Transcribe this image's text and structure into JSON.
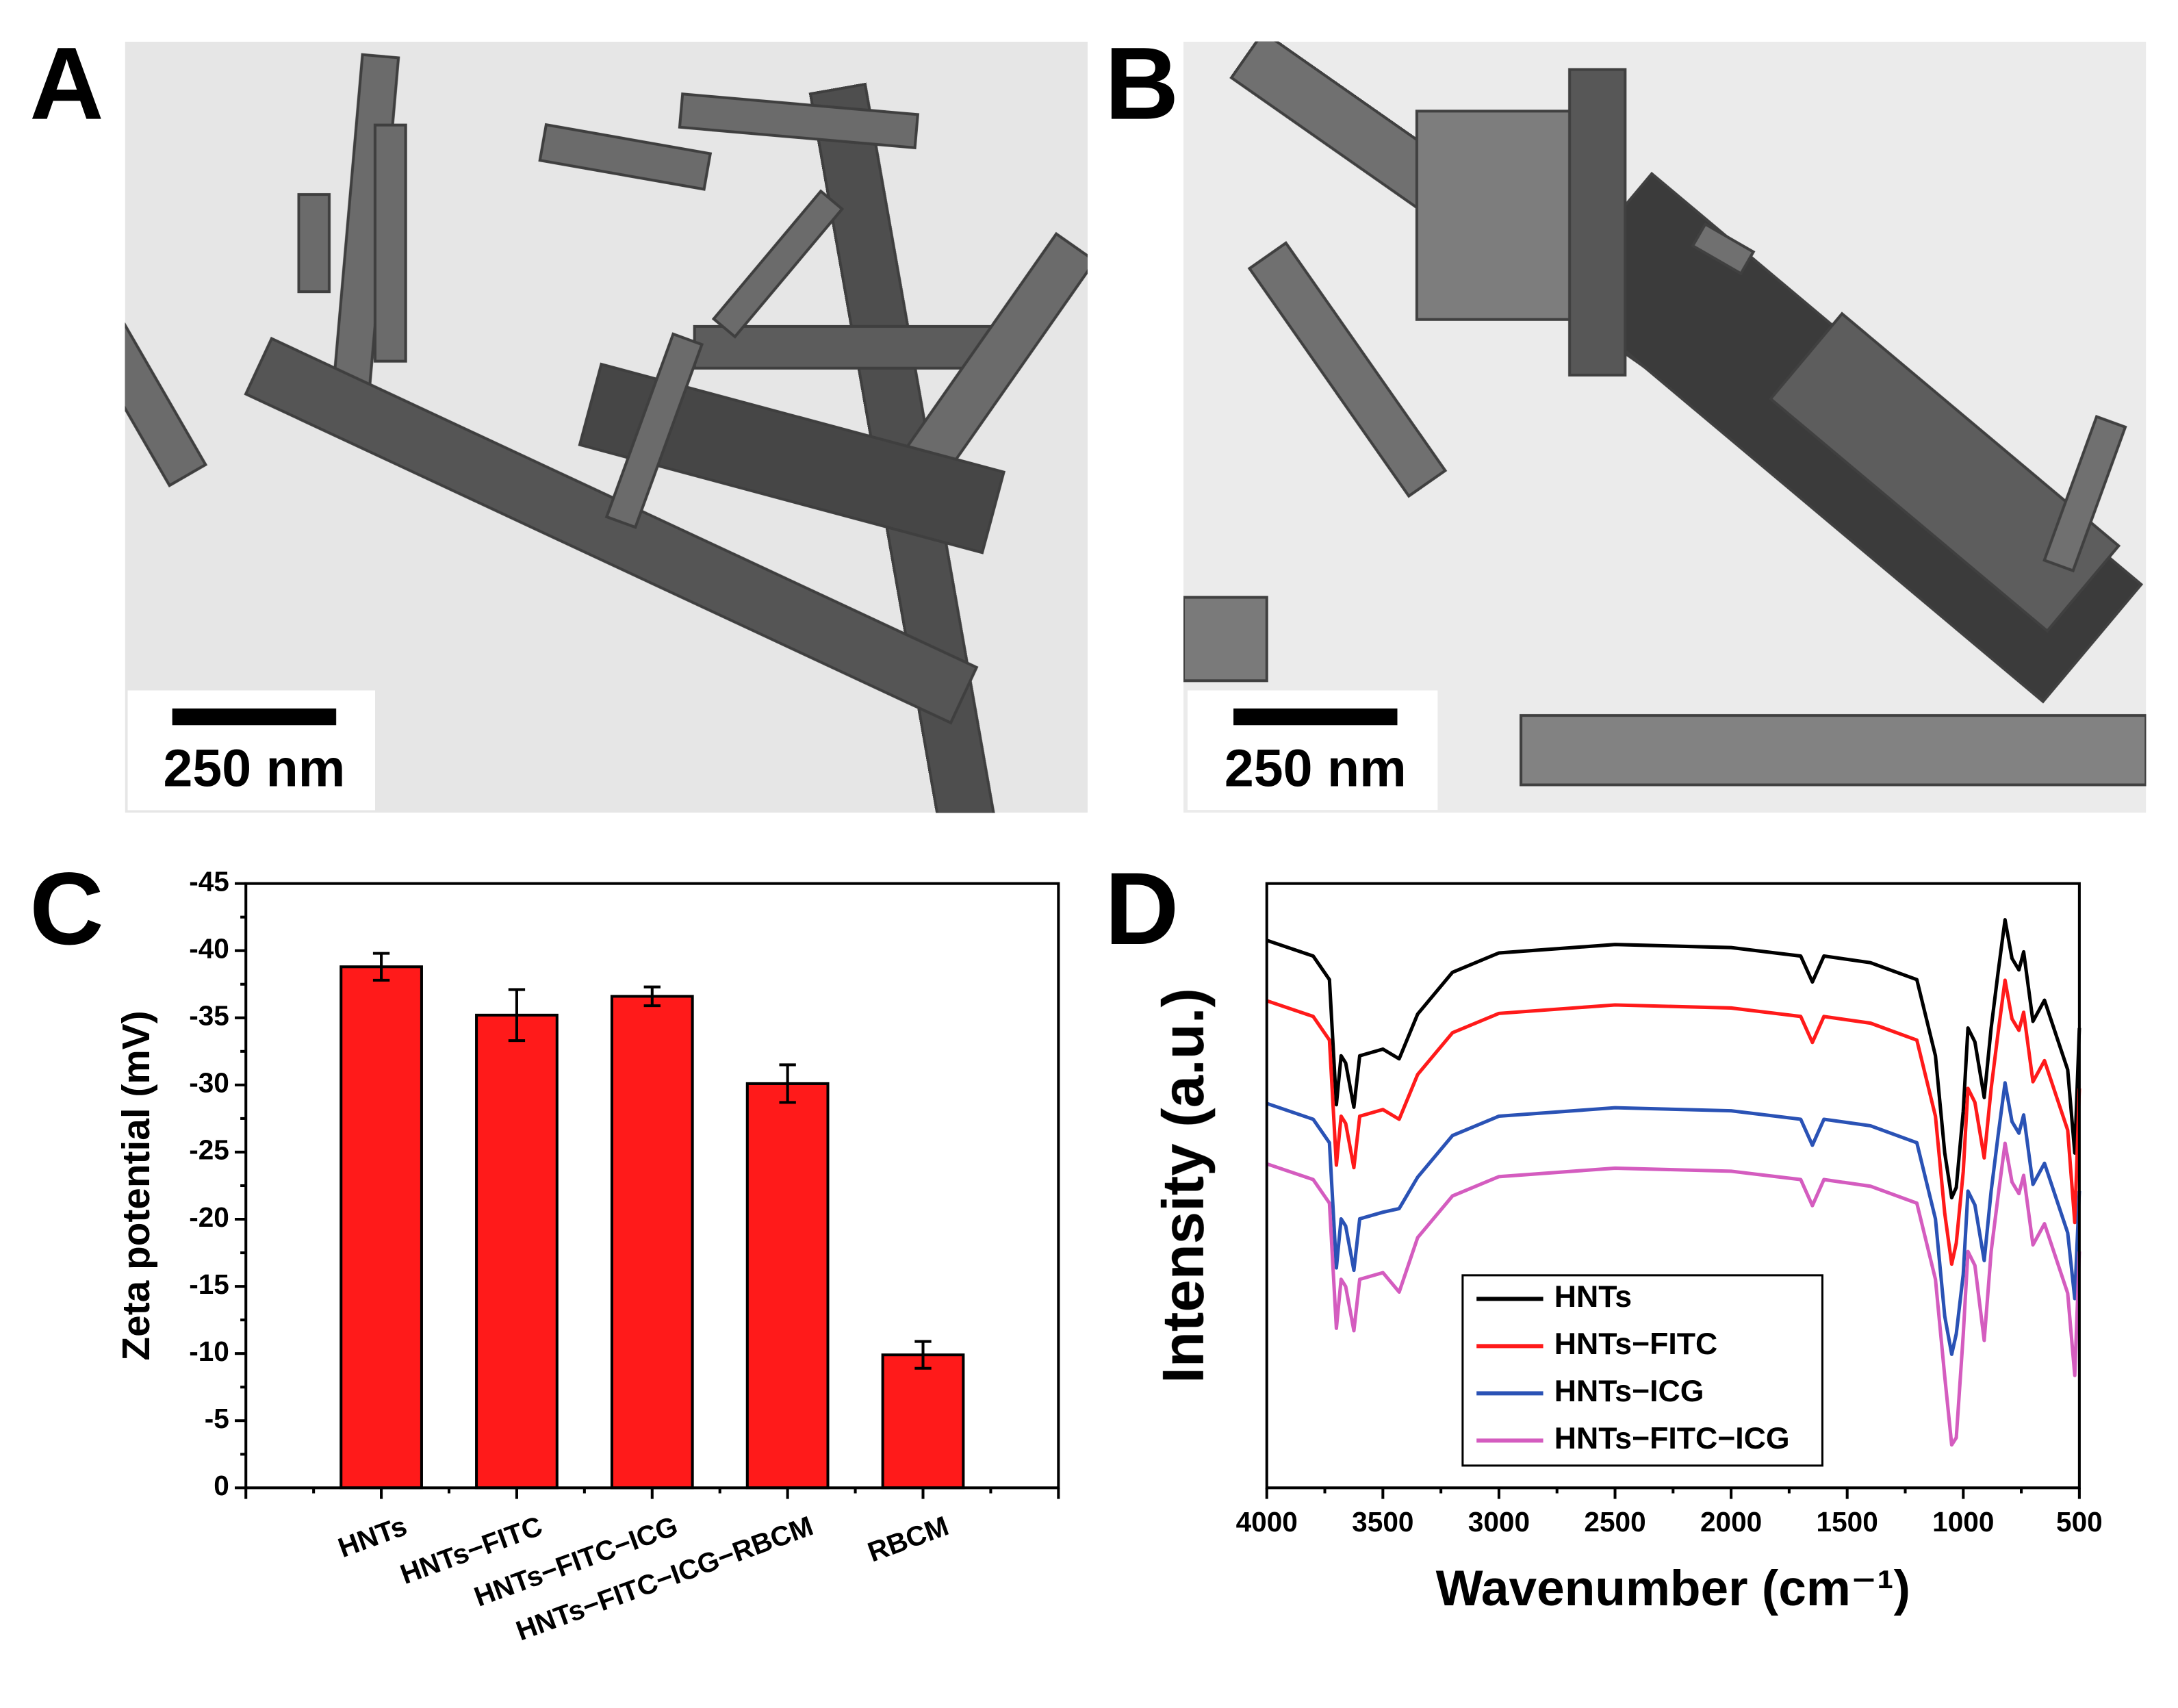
{
  "images": [
    {
      "panel_label": "A",
      "scale_bar": "250 nm"
    },
    {
      "panel_label": "B",
      "scale_bar": "250 nm"
    }
  ],
  "chart_data": [
    {
      "type": "bar",
      "panel_label": "C",
      "y_label": "Zeta potential (mV)",
      "categories": [
        "HNTs",
        "HNTs−FITC",
        "HNTs−FITC−ICG",
        "HNTs−FITC−ICG−RBCM",
        "RBCM"
      ],
      "values": [
        -38.8,
        -35.2,
        -36.6,
        -30.1,
        -9.9
      ],
      "errors": [
        1.0,
        1.9,
        0.7,
        1.4,
        1.0
      ],
      "color": "#ff1a1a",
      "ylim": [
        0,
        -45
      ],
      "yticks": [
        0,
        -5,
        -10,
        -15,
        -20,
        -25,
        -30,
        -35,
        -40,
        -45
      ]
    },
    {
      "type": "line",
      "panel_label": "D",
      "x_label": "Wavenumber (cm⁻¹)",
      "y_label": "Intensity (a.u.)",
      "x": [
        4000,
        3800,
        3730,
        3700,
        3680,
        3660,
        3625,
        3600,
        3500,
        3430,
        3350,
        3200,
        3000,
        2500,
        2000,
        1700,
        1650,
        1600,
        1400,
        1200,
        1120,
        1080,
        1050,
        1030,
        1000,
        980,
        950,
        910,
        880,
        850,
        820,
        790,
        760,
        740,
        700,
        650,
        600,
        550,
        520,
        500
      ],
      "series": [
        {
          "name": "HNTs",
          "color": "#000000",
          "values": [
            90.6,
            88.0,
            84.1,
            63.4,
            71.5,
            70.3,
            63.0,
            71.5,
            72.6,
            71.0,
            78.4,
            85.3,
            88.5,
            89.9,
            89.4,
            88.0,
            83.7,
            88.0,
            86.9,
            84.1,
            71.5,
            55.4,
            48.0,
            49.7,
            62.3,
            76.1,
            73.8,
            64.6,
            76.1,
            85.3,
            94.0,
            87.6,
            85.7,
            88.7,
            77.2,
            80.7,
            74.9,
            69.2,
            55.4,
            76.1
          ]
        },
        {
          "name": "HNTs−FITC",
          "color": "#ff1a1a",
          "values": [
            80.6,
            78.0,
            74.1,
            53.4,
            61.5,
            60.3,
            53.0,
            61.5,
            62.6,
            61.0,
            68.4,
            75.3,
            78.5,
            79.9,
            79.4,
            78.0,
            73.7,
            78.0,
            76.9,
            74.1,
            61.5,
            45.4,
            37.0,
            40.5,
            52.3,
            66.1,
            63.8,
            54.6,
            66.1,
            75.3,
            84.0,
            77.6,
            75.7,
            78.7,
            67.2,
            70.7,
            64.9,
            59.2,
            43.9,
            66.1
          ]
        },
        {
          "name": "HNTs−ICG",
          "color": "#2a52b5",
          "values": [
            63.6,
            61.0,
            57.1,
            36.4,
            44.5,
            43.3,
            36.0,
            44.5,
            45.6,
            46.2,
            51.4,
            58.3,
            61.5,
            62.9,
            62.4,
            61.0,
            56.7,
            61.0,
            59.9,
            57.1,
            44.5,
            28.4,
            22.1,
            25.5,
            35.3,
            49.1,
            46.8,
            37.6,
            49.1,
            58.3,
            67.0,
            60.6,
            58.7,
            61.7,
            50.2,
            53.7,
            47.9,
            42.2,
            31.3,
            49.1
          ]
        },
        {
          "name": "HNTs−FITC−ICG",
          "color": "#d45cbf",
          "values": [
            53.6,
            51.0,
            47.1,
            26.4,
            34.5,
            33.3,
            26.0,
            34.5,
            35.6,
            32.4,
            41.4,
            48.3,
            51.5,
            52.9,
            52.4,
            51.0,
            46.7,
            51.0,
            49.9,
            47.1,
            34.5,
            18.4,
            7.1,
            8.3,
            25.3,
            39.1,
            36.8,
            24.4,
            39.1,
            48.3,
            57.0,
            50.6,
            48.7,
            51.7,
            40.2,
            43.7,
            37.9,
            32.2,
            18.6,
            39.1
          ]
        }
      ],
      "xlim": [
        4000,
        500
      ],
      "xticks": [
        4000,
        3500,
        3000,
        2500,
        2000,
        1500,
        1000,
        500
      ],
      "ylim": [
        0,
        100
      ],
      "legend": "lower center"
    }
  ]
}
